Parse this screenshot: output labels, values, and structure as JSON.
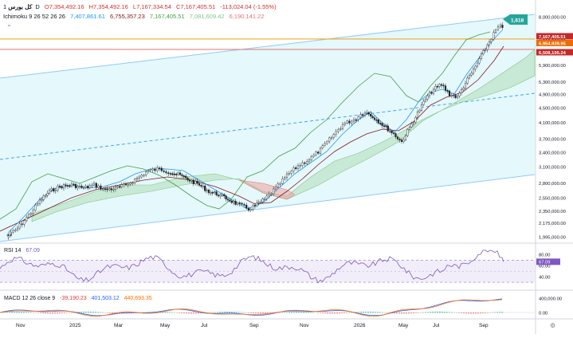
{
  "symbol": {
    "name": "کل بورس",
    "interval": "1D",
    "ohlc": {
      "open": "O7,354,492.16",
      "high": "H7,354,492.16",
      "low": "L7,167,334.54",
      "close": "C7,167,405.51",
      "change": "-113,024.04 (-1.55%)"
    }
  },
  "ichimoku": {
    "label": "Ichimoku 9 26 52 26 26",
    "values": [
      "7,407,861.61",
      "6,755,357.23",
      "7,167,405.51",
      "7,081,609.42",
      "6,190,141.22"
    ],
    "colors": [
      "#2196f3",
      "#801922",
      "#43a047",
      "#a5d6a7",
      "#ef9a9a"
    ]
  },
  "rsi": {
    "label": "RSI 14",
    "value": "67.09",
    "color": "#7e57c2"
  },
  "macd": {
    "label": "MACD 12 26 close 9",
    "values": [
      "-39,190.23",
      "401,503.12",
      "440,693.35"
    ],
    "colors": [
      "#e53935",
      "#2962ff",
      "#ff6d00"
    ]
  },
  "icons": [
    "chevron-up-icon",
    "clock-icon",
    "settings-icon"
  ],
  "chart_data": [
    {
      "type": "candlestick",
      "title": "کل بورس · 1D",
      "y_scale": "log",
      "ylim": [
        1900000,
        8300000
      ],
      "y_ticks": [
        "8,000,000.00",
        "7,000,000.00",
        "5,900,000.00",
        "5,300,000.00",
        "4,900,000.00",
        "4,500,000.00",
        "4,100,000.00",
        "3,700,000.00",
        "3,400,000.00",
        "3,100,000.00",
        "2,800,000.00",
        "2,550,000.00",
        "2,350,000.00",
        "2,175,000.00",
        "1,995,000.00"
      ],
      "x_ticks": [
        "Nov",
        "2025",
        "Mar",
        "May",
        "Jul",
        "Sep",
        "Nov",
        "2026",
        "May",
        "Jul",
        "Sep"
      ],
      "price_labels": [
        {
          "text": "7,167,405.51",
          "color": "#c62828"
        },
        {
          "text": "6,954,939.95",
          "color": "#ef6c00"
        },
        {
          "text": "6,508,195.24",
          "color": "#c62828"
        }
      ],
      "horizontal_lines": [
        {
          "value": 6954939.95,
          "color": "#f5a623"
        },
        {
          "value": 6508195.24,
          "color": "#e57373"
        }
      ],
      "annotation": {
        "text": "1,618",
        "color": "#26a69a"
      },
      "close_path": [
        {
          "x": "Nov",
          "y": 1995000
        },
        {
          "x": "Dec",
          "y": 2350000
        },
        {
          "x": "2025",
          "y": 2800000
        },
        {
          "x": "Feb",
          "y": 2700000
        },
        {
          "x": "Mar",
          "y": 2750000
        },
        {
          "x": "Apr",
          "y": 2950000
        },
        {
          "x": "May",
          "y": 3000000
        },
        {
          "x": "Jun",
          "y": 2900000
        },
        {
          "x": "Jul",
          "y": 2750000
        },
        {
          "x": "Aug",
          "y": 2600000
        },
        {
          "x": "Sep",
          "y": 2400000
        },
        {
          "x": "Oct",
          "y": 2700000
        },
        {
          "x": "Nov",
          "y": 2950000
        },
        {
          "x": "Dec",
          "y": 3300000
        },
        {
          "x": "2026",
          "y": 3850000
        },
        {
          "x": "Feb",
          "y": 4400000
        },
        {
          "x": "Mar",
          "y": 4100000
        },
        {
          "x": "Apr",
          "y": 3850000
        },
        {
          "x": "May",
          "y": 4500000
        },
        {
          "x": "Jun",
          "y": 5500000
        },
        {
          "x": "Jul",
          "y": 4900000
        },
        {
          "x": "Aug",
          "y": 5600000
        },
        {
          "x": "Sep",
          "y": 7300000
        },
        {
          "x": "Sep",
          "y": 7167405.51
        }
      ]
    },
    {
      "type": "line",
      "title": "RSI 14",
      "ylim": [
        20,
        95
      ],
      "y_ticks": [
        "80.00",
        "60.00",
        "40.00"
      ],
      "band": [
        30,
        70
      ],
      "last_value": 67.09
    },
    {
      "type": "line",
      "title": "MACD 12 26 close 9",
      "y_ticks": [
        "400,000.00",
        "0.00"
      ],
      "series": [
        {
          "name": "MACD",
          "last": 401503.12
        },
        {
          "name": "Signal",
          "last": 440693.35
        },
        {
          "name": "Histogram",
          "last": -39190.23
        }
      ]
    }
  ]
}
